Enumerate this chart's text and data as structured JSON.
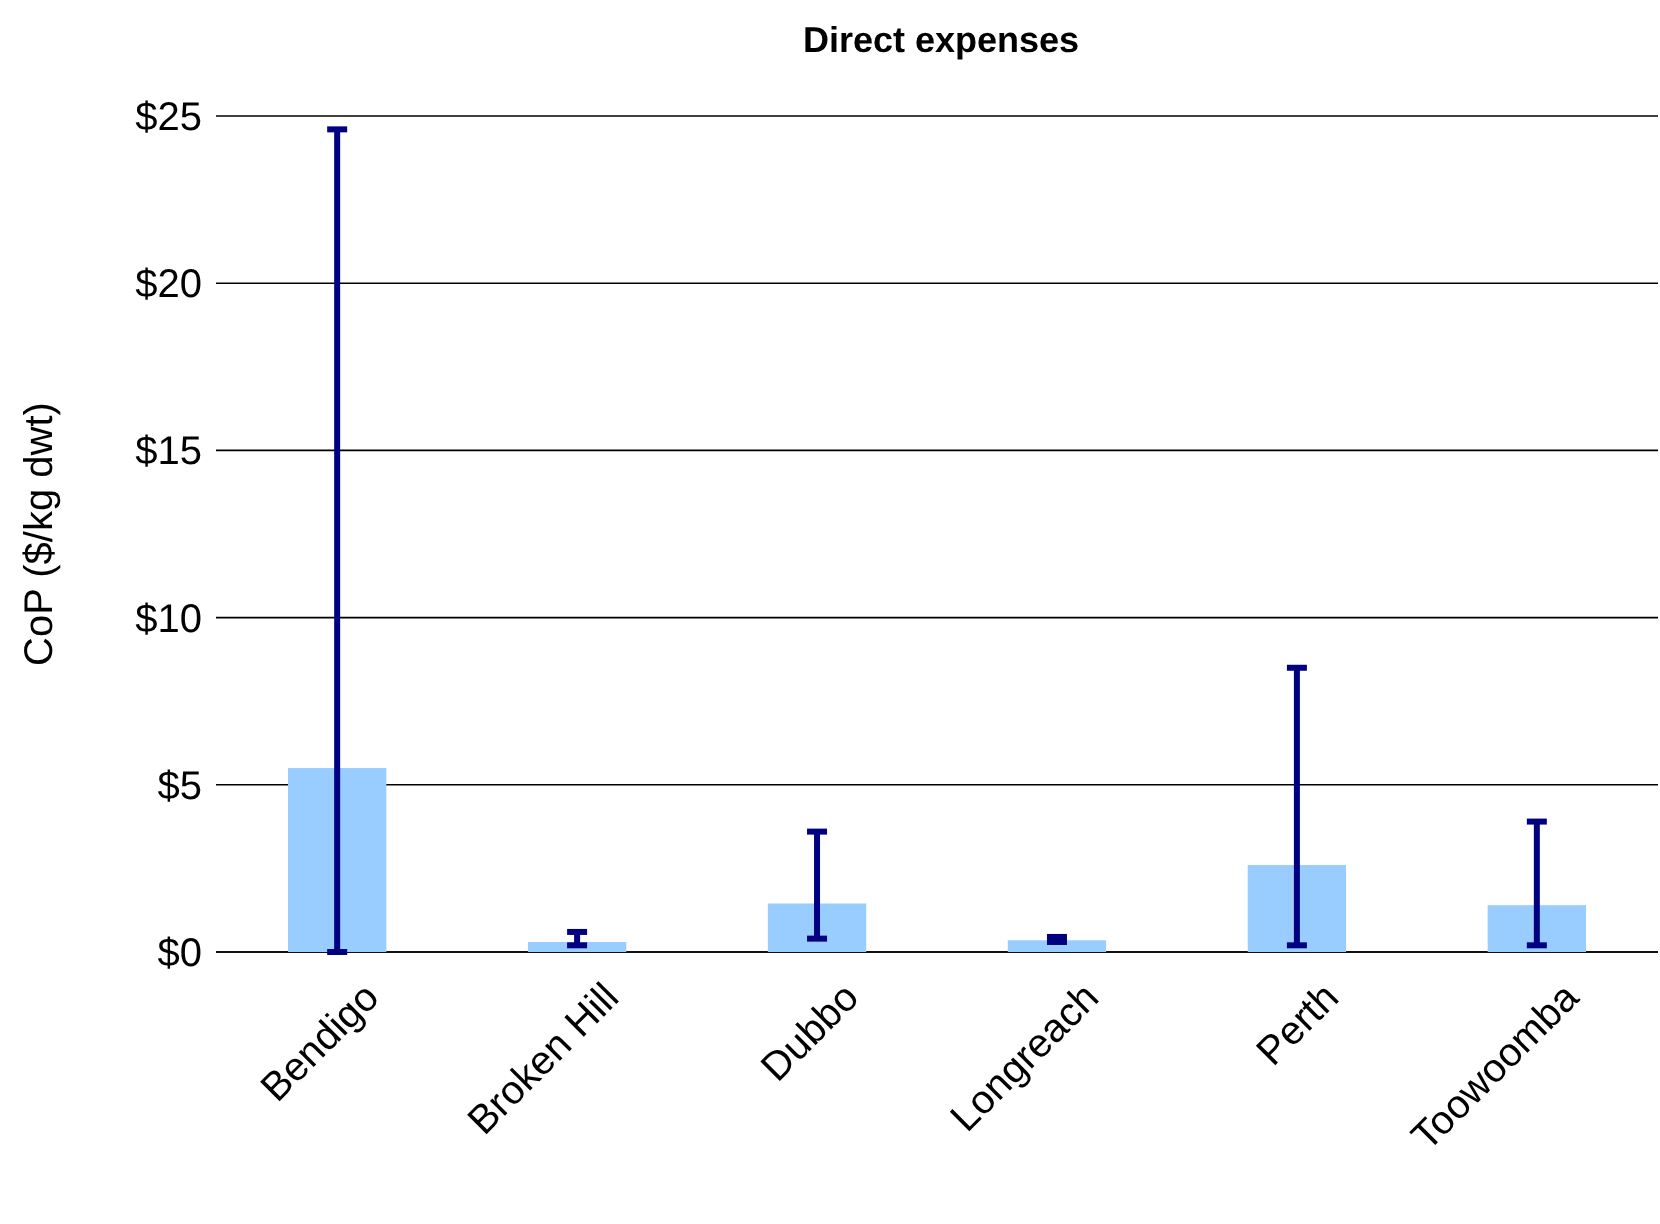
{
  "chart_data": {
    "type": "bar",
    "title": "Direct expenses",
    "ylabel": "CoP ($/kg dwt)",
    "categories": [
      "Bendigo",
      "Broken Hill",
      "Dubbo",
      "Longreach",
      "Perth",
      "Toowoomba"
    ],
    "values": [
      5.5,
      0.3,
      1.45,
      0.35,
      2.6,
      1.4
    ],
    "errors": [
      [
        0,
        24.6
      ],
      [
        0.2,
        0.6
      ],
      [
        0.4,
        3.6
      ],
      [
        0.3,
        0.45
      ],
      [
        0.2,
        8.5
      ],
      [
        0.2,
        3.9
      ]
    ],
    "color": "#99ccff",
    "ylim": [
      0,
      25
    ],
    "yticks": [
      {
        "value": 0,
        "label": "$0"
      },
      {
        "value": 5,
        "label": "$5"
      },
      {
        "value": 10,
        "label": "$10"
      },
      {
        "value": 15,
        "label": "$15"
      },
      {
        "value": 20,
        "label": "$20"
      },
      {
        "value": 25,
        "label": "$25"
      }
    ],
    "grid": "y"
  }
}
